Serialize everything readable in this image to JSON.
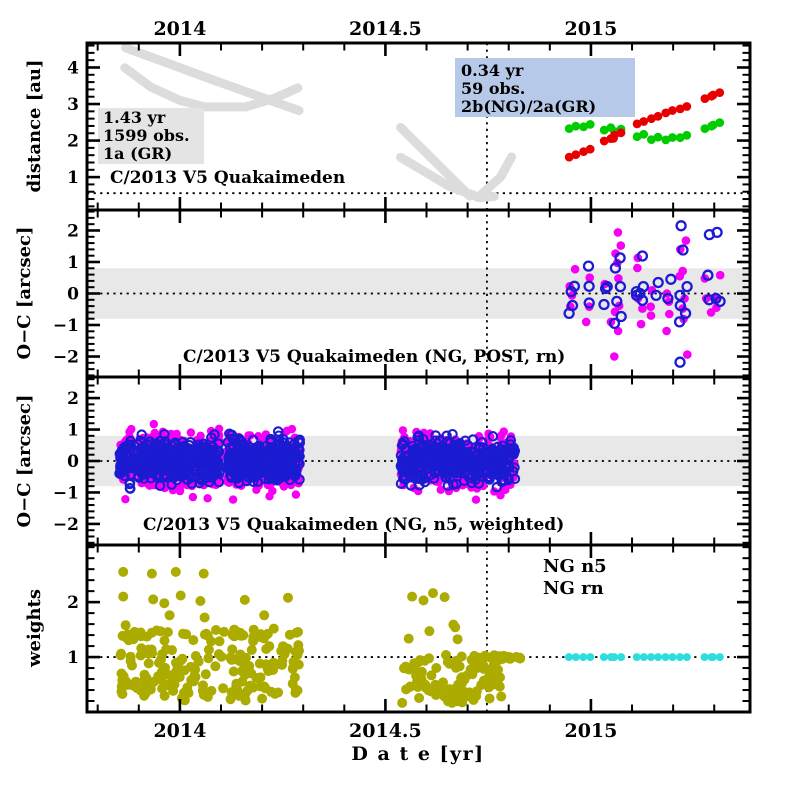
{
  "figure": {
    "object_name": "C/2013 V5 Quakaimeden"
  },
  "colors": {
    "magenta": "#F500F5",
    "blue": "#1B1BD2",
    "red": "#E60000",
    "green": "#00CC00",
    "olive": "#ABAB00",
    "cyan": "#2EDEDE",
    "gray_curve": "#DCDCDC",
    "band": "#E8E8E8",
    "gray_box": "#E4E4E4",
    "blue_box": "#B7C9E8",
    "frame": "#000000"
  },
  "x_axis": {
    "title": "D a t e  [yr]",
    "range": [
      2013.774,
      2015.387
    ],
    "tick_values": [
      2014,
      2014.5,
      2015
    ],
    "tick_labels": [
      "2014",
      "2014.5",
      "2015"
    ],
    "minor_step": 0.1,
    "vline": 2014.747
  },
  "chart_data": [
    {
      "type": "scatter",
      "panel": "distance",
      "ylabel": "distance [au]",
      "ylim": [
        0.1,
        4.67
      ],
      "yticks": {
        "values": [
          1,
          2,
          3,
          4
        ],
        "labels": [
          "1",
          "2",
          "3",
          "4"
        ],
        "minor_step": 0.2
      },
      "dotted_hline": 0.56,
      "title": "C/2013 V5 Quakaimeden",
      "annotations": [
        {
          "lines": [
            "1.43 yr",
            "1599 obs.",
            "1a (GR)"
          ]
        },
        {
          "lines": [
            "0.34 yr",
            "59 obs.",
            "2b(NG)/2a(GR)"
          ]
        }
      ],
      "gray_curves": [
        [
          [
            2013.868,
            4.54
          ],
          [
            2013.97,
            4.12
          ],
          [
            2014.07,
            3.7
          ],
          [
            2014.18,
            3.26
          ],
          [
            2014.29,
            2.82
          ]
        ],
        [
          [
            2013.866,
            3.99
          ],
          [
            2013.93,
            3.46
          ],
          [
            2014.0,
            3.1
          ],
          [
            2014.06,
            2.92
          ],
          [
            2014.16,
            2.92
          ],
          [
            2014.23,
            3.16
          ],
          [
            2014.287,
            3.44
          ]
        ],
        [
          [
            2014.537,
            2.36
          ],
          [
            2014.705,
            0.48
          ]
        ],
        [
          [
            2014.537,
            1.54
          ],
          [
            2014.655,
            0.75
          ],
          [
            2014.73,
            0.44
          ],
          [
            2014.765,
            0.47
          ]
        ],
        [
          [
            2014.725,
            0.44
          ],
          [
            2014.78,
            1.0
          ],
          [
            2014.807,
            1.55
          ]
        ]
      ],
      "epochs": [
        2014.955,
        2014.99,
        2015.04,
        2015.065,
        2015.12,
        2015.155,
        2015.19,
        2015.225,
        2015.285,
        2015.305
      ],
      "series": [
        {
          "name": "green",
          "color_key": "green",
          "values": [
            2.36,
            2.41,
            2.32,
            2.28,
            2.14,
            2.06,
            2.05,
            2.11,
            2.36,
            2.46
          ]
        },
        {
          "name": "red",
          "color_key": "red",
          "values": [
            1.58,
            1.73,
            2.02,
            2.18,
            2.49,
            2.63,
            2.79,
            2.9,
            3.18,
            3.28
          ],
          "extra_points": [
            [
              2015.055,
              2.06
            ]
          ]
        }
      ]
    },
    {
      "type": "scatter",
      "panel": "oc_post",
      "ylabel": "O−C [arcsec]",
      "ylim": [
        -2.65,
        2.65
      ],
      "yticks": {
        "values": [
          -2,
          -1,
          0,
          1,
          2
        ],
        "labels": [
          "−2",
          "−1",
          "0",
          "1",
          "2"
        ],
        "minor_step": 0.2
      },
      "band": [
        -0.8,
        0.8
      ],
      "dotted_hline": 0,
      "title": "C/2013 V5 Quakaimeden (NG, POST, rn)",
      "series": [
        {
          "name": "magenta_filled",
          "color_key": "magenta",
          "points": [
            [
              2014.955,
              0.77
            ],
            [
              2014.955,
              0.23
            ],
            [
              2014.955,
              -0.06
            ],
            [
              2014.955,
              -0.42
            ],
            [
              2014.99,
              0.5
            ],
            [
              2014.99,
              -0.42
            ],
            [
              2014.99,
              -0.9
            ],
            [
              2015.04,
              0.3
            ],
            [
              2015.04,
              -0.9
            ],
            [
              2015.065,
              1.94
            ],
            [
              2015.065,
              1.52
            ],
            [
              2015.065,
              1.27
            ],
            [
              2015.065,
              0.97
            ],
            [
              2015.065,
              0.48
            ],
            [
              2015.065,
              -0.39
            ],
            [
              2015.065,
              -0.58
            ],
            [
              2015.065,
              -1.19
            ],
            [
              2015.065,
              -2.0
            ],
            [
              2015.12,
              1.13
            ],
            [
              2015.12,
              0.81
            ],
            [
              2015.12,
              -0.16
            ],
            [
              2015.12,
              -0.48
            ],
            [
              2015.12,
              -0.97
            ],
            [
              2015.155,
              0.1
            ],
            [
              2015.155,
              -0.42
            ],
            [
              2015.155,
              -0.7
            ],
            [
              2015.19,
              0.0
            ],
            [
              2015.19,
              -0.26
            ],
            [
              2015.19,
              -0.65
            ],
            [
              2015.19,
              -1.19
            ],
            [
              2015.225,
              1.68
            ],
            [
              2015.225,
              1.4
            ],
            [
              2015.225,
              0.71
            ],
            [
              2015.225,
              0.55
            ],
            [
              2015.225,
              -0.16
            ],
            [
              2015.225,
              -0.48
            ],
            [
              2015.225,
              -0.81
            ],
            [
              2015.225,
              -1.94
            ],
            [
              2015.285,
              0.48
            ],
            [
              2015.285,
              -0.16
            ],
            [
              2015.285,
              -0.6
            ],
            [
              2015.305,
              0.58
            ],
            [
              2015.305,
              -0.16
            ],
            [
              2015.305,
              -0.45
            ]
          ]
        },
        {
          "name": "blue_open",
          "color_key": "blue",
          "points": [
            [
              2014.955,
              0.23
            ],
            [
              2014.955,
              0.06
            ],
            [
              2014.955,
              -0.38
            ],
            [
              2014.955,
              -0.63
            ],
            [
              2014.99,
              0.87
            ],
            [
              2014.99,
              0.23
            ],
            [
              2014.99,
              -0.3
            ],
            [
              2015.04,
              0.22
            ],
            [
              2015.04,
              0.16
            ],
            [
              2015.04,
              -0.35
            ],
            [
              2015.065,
              1.13
            ],
            [
              2015.065,
              0.81
            ],
            [
              2015.065,
              0.22
            ],
            [
              2015.065,
              -0.25
            ],
            [
              2015.065,
              -0.73
            ],
            [
              2015.065,
              -0.95
            ],
            [
              2015.12,
              1.19
            ],
            [
              2015.12,
              0.22
            ],
            [
              2015.12,
              0.06
            ],
            [
              2015.12,
              0.0
            ],
            [
              2015.12,
              -0.06
            ],
            [
              2015.12,
              -0.22
            ],
            [
              2015.155,
              0.35
            ],
            [
              2015.155,
              -0.06
            ],
            [
              2015.19,
              0.45
            ],
            [
              2015.19,
              -0.16
            ],
            [
              2015.225,
              2.15
            ],
            [
              2015.225,
              1.38
            ],
            [
              2015.225,
              0.22
            ],
            [
              2015.225,
              -0.06
            ],
            [
              2015.225,
              -0.38
            ],
            [
              2015.225,
              -0.63
            ],
            [
              2015.225,
              -0.9
            ],
            [
              2015.225,
              -2.18
            ],
            [
              2015.285,
              1.87
            ],
            [
              2015.285,
              0.58
            ],
            [
              2015.285,
              -0.2
            ],
            [
              2015.305,
              1.94
            ],
            [
              2015.305,
              -0.16
            ],
            [
              2015.305,
              -0.25
            ]
          ]
        }
      ]
    },
    {
      "type": "scatter",
      "panel": "oc_weighted",
      "ylabel": "O−C [arcsec]",
      "ylim": [
        -2.67,
        2.67
      ],
      "yticks": {
        "values": [
          -2,
          -1,
          0,
          1,
          2
        ],
        "labels": [
          "−2",
          "−1",
          "0",
          "1",
          "2"
        ],
        "minor_step": 0.2
      },
      "band": [
        -0.8,
        0.8
      ],
      "dotted_hline": 0,
      "title": "C/2013 V5 Quakaimeden (NG, n5, weighted)",
      "cloud_series": [
        {
          "name": "magenta_filled",
          "color_key": "magenta",
          "sigma": 0.43,
          "clip": 1.32,
          "clusters": [
            {
              "x0": 2013.853,
              "x1": 2013.883,
              "n": 70
            },
            {
              "x0": 2013.898,
              "x1": 2013.968,
              "n": 150
            },
            {
              "x0": 2013.976,
              "x1": 2014.032,
              "n": 130
            },
            {
              "x0": 2014.041,
              "x1": 2014.097,
              "n": 110
            },
            {
              "x0": 2014.114,
              "x1": 2014.195,
              "n": 170
            },
            {
              "x0": 2014.202,
              "x1": 2014.292,
              "n": 170
            },
            {
              "x0": 2014.537,
              "x1": 2014.815,
              "n": 400
            }
          ]
        },
        {
          "name": "blue_open",
          "color_key": "blue",
          "sigma": 0.33,
          "clip": 1.02,
          "clusters": [
            {
              "x0": 2013.853,
              "x1": 2013.883,
              "n": 70
            },
            {
              "x0": 2013.898,
              "x1": 2013.968,
              "n": 150
            },
            {
              "x0": 2013.976,
              "x1": 2014.032,
              "n": 130
            },
            {
              "x0": 2014.041,
              "x1": 2014.097,
              "n": 110
            },
            {
              "x0": 2014.114,
              "x1": 2014.195,
              "n": 170
            },
            {
              "x0": 2014.202,
              "x1": 2014.292,
              "n": 170
            },
            {
              "x0": 2014.537,
              "x1": 2014.815,
              "n": 400
            }
          ]
        }
      ]
    },
    {
      "type": "scatter",
      "panel": "weights",
      "ylabel": "weights",
      "ylim": [
        0,
        3.04
      ],
      "yticks": {
        "values": [
          1,
          2
        ],
        "labels": [
          "1",
          "2"
        ],
        "minor_step": 0.2
      },
      "dotted_hline": 1,
      "legend": [
        {
          "label": "NG n5",
          "color_key": "olive"
        },
        {
          "label": "NG rn",
          "color_key": "cyan"
        }
      ],
      "olive": {
        "fixed_points": [
          [
            2013.862,
            2.55
          ],
          [
            2013.932,
            2.52
          ],
          [
            2013.99,
            2.55
          ],
          [
            2014.058,
            2.52
          ],
          [
            2013.862,
            2.1
          ],
          [
            2013.935,
            2.05
          ],
          [
            2013.962,
            1.98
          ],
          [
            2014.002,
            2.12
          ],
          [
            2014.05,
            2.02
          ],
          [
            2014.158,
            2.04
          ],
          [
            2014.263,
            2.08
          ],
          [
            2014.565,
            2.1
          ],
          [
            2013.975,
            1.76
          ],
          [
            2014.06,
            1.72
          ],
          [
            2013.868,
            1.58
          ],
          [
            2014.205,
            1.76
          ]
        ],
        "clusters": [
          {
            "x0": 2013.855,
            "x1": 2014.29,
            "n": 210,
            "mixture": [
              [
                0.17,
                1.28,
                1.52
              ],
              [
                0.72,
                0.52,
                1.22
              ],
              [
                0.91,
                0.33,
                0.52
              ],
              [
                1.0,
                0.17,
                0.33
              ]
            ]
          },
          {
            "x0": 2014.54,
            "x1": 2014.79,
            "n": 110,
            "mixture": [
              [
                0.02,
                2.0,
                2.2
              ],
              [
                0.1,
                1.2,
                1.6
              ],
              [
                0.65,
                0.45,
                1.05
              ],
              [
                0.87,
                0.3,
                0.5
              ],
              [
                1.0,
                0.16,
                0.3
              ]
            ]
          },
          {
            "x0": 2014.715,
            "x1": 2014.83,
            "n": 26,
            "mixture": [
              [
                1.0,
                0.96,
                1.04
              ]
            ]
          }
        ]
      },
      "cyan_epochs": {
        "epochs": [
          2014.955,
          2014.99,
          2015.04,
          2015.065,
          2015.12,
          2015.155,
          2015.19,
          2015.225,
          2015.285,
          2015.305
        ],
        "w": 1
      }
    }
  ]
}
